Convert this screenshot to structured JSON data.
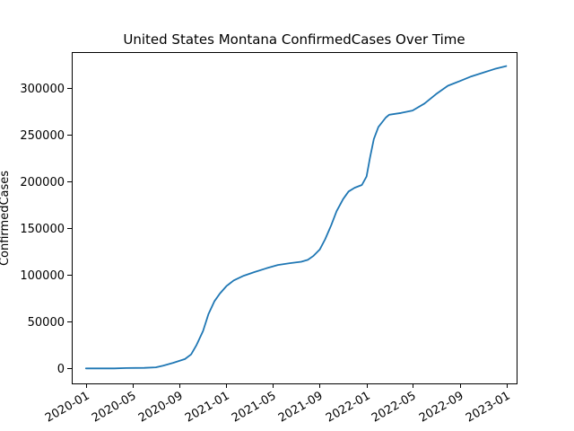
{
  "chart_data": {
    "type": "line",
    "title": "United States Montana ConfirmedCases Over Time",
    "xlabel": "",
    "ylabel": "ConfirmedCases",
    "x_ticks": [
      "2020-01",
      "2020-05",
      "2020-09",
      "2021-01",
      "2021-05",
      "2021-09",
      "2022-01",
      "2022-05",
      "2022-09",
      "2023-01"
    ],
    "y_ticks": [
      0,
      50000,
      100000,
      150000,
      200000,
      250000,
      300000
    ],
    "y_tick_labels": [
      "0",
      "50000",
      "100000",
      "150000",
      "200000",
      "250000",
      "300000"
    ],
    "xlim": [
      "2019-11-25",
      "2023-01-27"
    ],
    "ylim": [
      -16000,
      338000
    ],
    "grid": false,
    "series": [
      {
        "color": "#1f77b4",
        "points": [
          [
            "2020-01-01",
            0
          ],
          [
            "2020-03-15",
            30
          ],
          [
            "2020-04-15",
            400
          ],
          [
            "2020-06-01",
            600
          ],
          [
            "2020-07-01",
            1200
          ],
          [
            "2020-07-20",
            3000
          ],
          [
            "2020-08-15",
            6000
          ],
          [
            "2020-09-15",
            10000
          ],
          [
            "2020-10-01",
            15000
          ],
          [
            "2020-10-15",
            25000
          ],
          [
            "2020-11-01",
            40000
          ],
          [
            "2020-11-15",
            58000
          ],
          [
            "2020-12-01",
            72000
          ],
          [
            "2020-12-15",
            80000
          ],
          [
            "2021-01-01",
            88000
          ],
          [
            "2021-01-20",
            94000
          ],
          [
            "2021-02-15",
            99000
          ],
          [
            "2021-03-15",
            103000
          ],
          [
            "2021-04-15",
            107000
          ],
          [
            "2021-05-15",
            110500
          ],
          [
            "2021-06-15",
            112500
          ],
          [
            "2021-07-15",
            114000
          ],
          [
            "2021-08-01",
            116000
          ],
          [
            "2021-08-15",
            120000
          ],
          [
            "2021-09-01",
            127000
          ],
          [
            "2021-09-15",
            138000
          ],
          [
            "2021-10-01",
            153000
          ],
          [
            "2021-10-15",
            168000
          ],
          [
            "2021-11-01",
            181000
          ],
          [
            "2021-11-15",
            189000
          ],
          [
            "2021-12-01",
            193000
          ],
          [
            "2021-12-20",
            196000
          ],
          [
            "2022-01-01",
            205000
          ],
          [
            "2022-01-10",
            225000
          ],
          [
            "2022-01-20",
            245000
          ],
          [
            "2022-02-01",
            258000
          ],
          [
            "2022-02-20",
            268000
          ],
          [
            "2022-03-01",
            271000
          ],
          [
            "2022-04-01",
            273000
          ],
          [
            "2022-05-01",
            275500
          ],
          [
            "2022-06-01",
            283000
          ],
          [
            "2022-07-01",
            293000
          ],
          [
            "2022-08-01",
            302000
          ],
          [
            "2022-09-01",
            307000
          ],
          [
            "2022-10-01",
            312000
          ],
          [
            "2022-11-01",
            316000
          ],
          [
            "2022-12-01",
            320000
          ],
          [
            "2022-12-31",
            323000
          ]
        ]
      }
    ]
  }
}
